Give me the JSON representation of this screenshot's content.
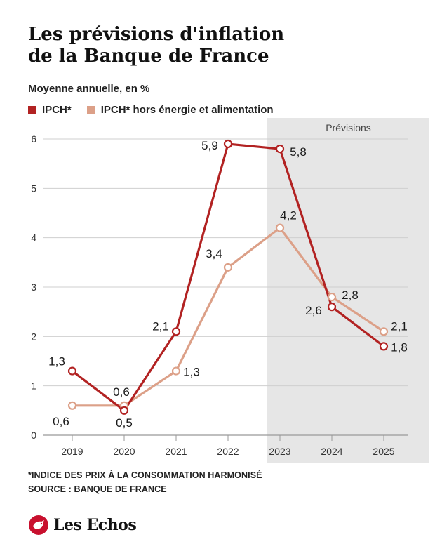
{
  "header": {
    "title_line1": "Les prévisions d'inflation",
    "title_line2": "de la Banque de France"
  },
  "chart_data": {
    "type": "line",
    "subtitle": "Moyenne annuelle, en %",
    "categories": [
      "2019",
      "2020",
      "2021",
      "2022",
      "2023",
      "2024",
      "2025"
    ],
    "series": [
      {
        "name": "IPCH*",
        "values": [
          1.3,
          0.5,
          2.1,
          5.9,
          5.8,
          2.6,
          1.8
        ],
        "labels": [
          "1,3",
          "0,5",
          "2,1",
          "5,9",
          "5,8",
          "2,6",
          "1,8"
        ],
        "color": "#b22222"
      },
      {
        "name": "IPCH* hors énergie et alimentation",
        "values": [
          0.6,
          0.6,
          1.3,
          3.4,
          4.2,
          2.8,
          2.1
        ],
        "labels": [
          "0,6",
          "0,6",
          "1,3",
          "3,4",
          "4,2",
          "2,8",
          "2,1"
        ],
        "color": "#dca088"
      }
    ],
    "ylim": [
      0,
      6
    ],
    "yticks": [
      "0",
      "1",
      "2",
      "3",
      "4",
      "5",
      "6"
    ],
    "forecast": {
      "label": "Prévisions",
      "from": "2023",
      "to": "2025",
      "shade_color": "#e6e6e6"
    },
    "grid": true
  },
  "footer": {
    "note": "*INDICE DES PRIX À LA CONSOMMATION HARMONISÉ",
    "source": "SOURCE : BANQUE DE FRANCE"
  },
  "brand": {
    "name": "Les Echos",
    "logo_icon": "les-echos-logo-icon",
    "color": "#c8102e"
  }
}
